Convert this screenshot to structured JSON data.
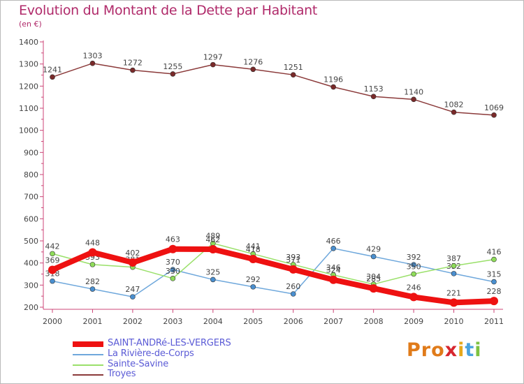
{
  "title": "Evolution du Montant de la Dette par Habitant",
  "subtitle": "(en €)",
  "logo": {
    "text": "Proxiti",
    "letter_colors": [
      "#e07b1a",
      "#e07b1a",
      "#e07b1a",
      "#d7262f",
      "#e6a81c",
      "#4aa3df",
      "#7dc242"
    ]
  },
  "chart_data": {
    "type": "line",
    "title": "Evolution du Montant de la Dette par Habitant",
    "ylabel": "(en €)",
    "xlabel": "",
    "categories": [
      "2000",
      "2001",
      "2002",
      "2003",
      "2004",
      "2005",
      "2006",
      "2007",
      "2008",
      "2009",
      "2010",
      "2011"
    ],
    "ylim": [
      200,
      1400
    ],
    "yticks": [
      200,
      300,
      400,
      500,
      600,
      700,
      800,
      900,
      1000,
      1100,
      1200,
      1300,
      1400
    ],
    "grid": false,
    "legend_position": "bottom-left",
    "series": [
      {
        "name": "Troyes",
        "color": "#7a2a2a",
        "line_color": "#8b3a3a",
        "values": [
          1241,
          1303,
          1272,
          1255,
          1297,
          1276,
          1251,
          1196,
          1153,
          1140,
          1082,
          1069
        ],
        "labels": [
          "1241",
          "1303",
          "1272",
          "1255",
          "1297",
          "1276",
          "1251",
          "1196",
          "1153",
          "1140",
          "1082",
          "1069"
        ]
      },
      {
        "name": "La Rivière-de-Corps",
        "color": "#4a8fcf",
        "line_color": "#6fa8dc",
        "values": [
          318,
          282,
          247,
          370,
          325,
          292,
          260,
          466,
          429,
          392,
          352,
          315
        ],
        "labels": [
          "318",
          "282",
          "247",
          "370",
          "325",
          "292",
          "260",
          "466",
          "429",
          "392",
          "352",
          "315"
        ]
      },
      {
        "name": "Sainte-Savine",
        "color": "#8fdc5a",
        "line_color": "#9ae06a",
        "values": [
          442,
          393,
          381,
          330,
          489,
          441,
          393,
          346,
          304,
          350,
          387,
          416
        ],
        "labels": [
          "442",
          "393",
          "381",
          "330",
          "489",
          "441",
          "393",
          "346",
          "304",
          "350",
          "387",
          "416"
        ]
      },
      {
        "name": "SAINT-ANDRé-LES-VERGERS",
        "color": "#ee1111",
        "line_color": "#ee1111",
        "values": [
          369,
          448,
          402,
          463,
          462,
          418,
          371,
          324,
          285,
          246,
          221,
          228
        ],
        "labels": [
          "369",
          "448",
          "402",
          "463",
          "462",
          "418",
          "371",
          "324",
          "285",
          "246",
          "221",
          "228"
        ]
      }
    ]
  }
}
